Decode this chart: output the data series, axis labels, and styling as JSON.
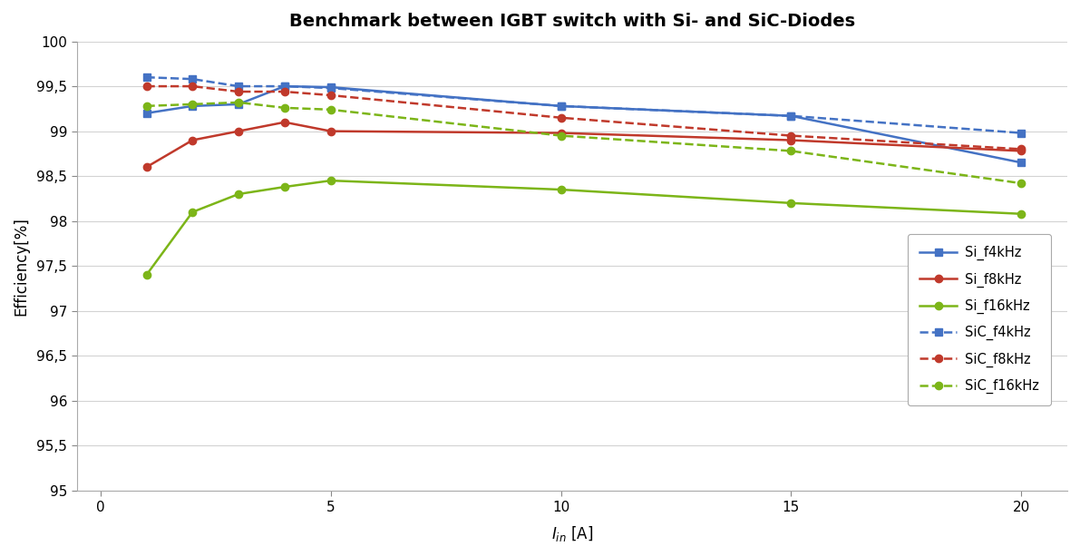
{
  "title": "Benchmark between IGBT switch with Si- and SiC-Diodes",
  "xlabel": "I_in [A]",
  "ylabel": "Efficiency[%]",
  "x": [
    1,
    2,
    3,
    4,
    5,
    10,
    15,
    20
  ],
  "Si_f4kHz": [
    99.2,
    99.28,
    99.3,
    99.5,
    99.49,
    99.28,
    99.17,
    98.65
  ],
  "Si_f8kHz": [
    98.6,
    98.9,
    99.0,
    99.1,
    99.0,
    98.98,
    98.9,
    98.78
  ],
  "Si_f16kHz": [
    97.4,
    98.1,
    98.3,
    98.38,
    98.45,
    98.35,
    98.2,
    98.08
  ],
  "SiC_f4kHz": [
    99.6,
    99.58,
    99.5,
    99.5,
    99.48,
    99.28,
    99.17,
    98.98
  ],
  "SiC_f8kHz": [
    99.5,
    99.5,
    99.44,
    99.44,
    99.4,
    99.15,
    98.95,
    98.8
  ],
  "SiC_f16kHz": [
    99.28,
    99.3,
    99.32,
    99.26,
    99.24,
    98.95,
    98.78,
    98.42
  ],
  "colors": {
    "blue": "#4472C4",
    "red": "#C0392B",
    "green": "#7CB518"
  },
  "ylim": [
    95.0,
    100.0
  ],
  "ytick_values": [
    95.0,
    95.5,
    96.0,
    96.5,
    97.0,
    97.5,
    98.0,
    98.5,
    99.0,
    99.5,
    100.0
  ],
  "ytick_labels": [
    "95",
    "95,5",
    "96",
    "96,5",
    "97",
    "97,5",
    "98",
    "98,5",
    "99",
    "99,5",
    "100"
  ],
  "xtick_values": [
    0,
    5,
    10,
    15,
    20
  ],
  "xlim": [
    -0.5,
    21
  ],
  "background_color": "#FFFFFF",
  "plot_bg_color": "#FFFFFF",
  "grid_color": "#D3D3D3"
}
